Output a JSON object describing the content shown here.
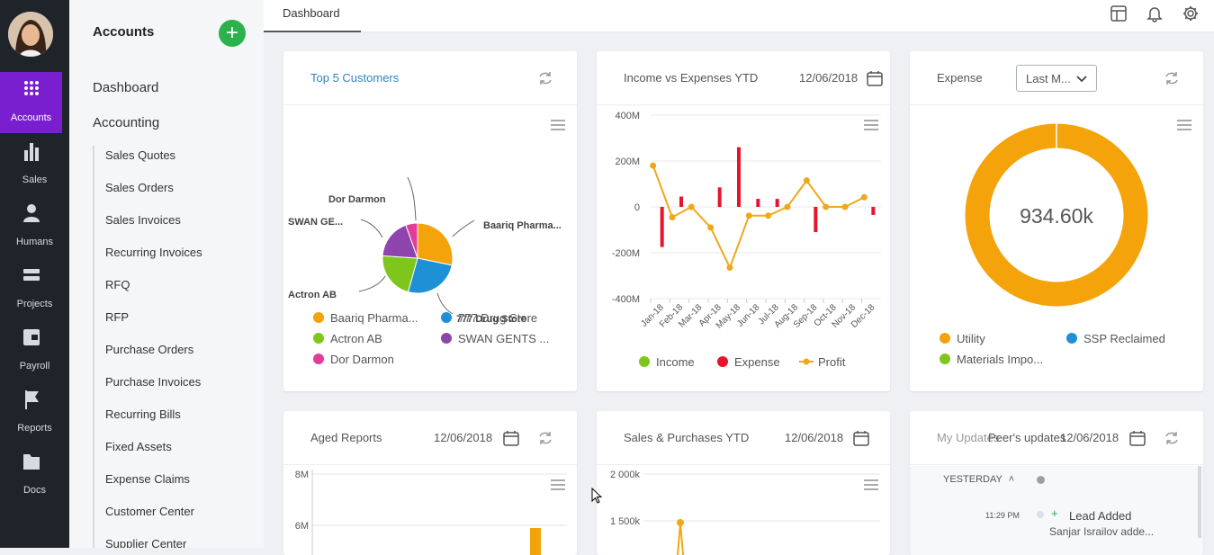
{
  "nav": {
    "items": [
      {
        "label": "Accounts",
        "icon": "apps-grid-icon"
      },
      {
        "label": "Sales",
        "icon": "bar-chart-icon"
      },
      {
        "label": "Humans",
        "icon": "person-icon"
      },
      {
        "label": "Projects",
        "icon": "stack-icon"
      },
      {
        "label": "Payroll",
        "icon": "wallet-icon"
      },
      {
        "label": "Reports",
        "icon": "flag-icon"
      },
      {
        "label": "Docs",
        "icon": "folder-icon"
      }
    ]
  },
  "submenu": {
    "title": "Accounts",
    "add_label": "+",
    "main": [
      "Dashboard",
      "Accounting"
    ],
    "items": [
      "Sales Quotes",
      "Sales Orders",
      "Sales Invoices",
      "Recurring Invoices",
      "RFQ",
      "RFP",
      "Purchase Orders",
      "Purchase Invoices",
      "Recurring Bills",
      "Fixed Assets",
      "Expense Claims",
      "Customer Center",
      "Supplier Center"
    ]
  },
  "topbar": {
    "tab": "Dashboard"
  },
  "cards": {
    "top5": {
      "title": "Top 5 Customers",
      "labels": [
        "Dor Darmon",
        "SWAN GE...",
        "Baariq Pharma...",
        "Actron AB",
        "777 Drug Store"
      ],
      "legend": [
        "Baariq Pharma...",
        "777 Drug Store",
        "Actron AB",
        "SWAN GENTS ...",
        "Dor Darmon"
      ]
    },
    "income": {
      "title": "Income vs Expenses YTD",
      "date": "12/06/2018",
      "legend": [
        "Income",
        "Expense",
        "Profit"
      ]
    },
    "expense": {
      "title": "Expense",
      "select": "Last M...",
      "center": "934.60k",
      "legend": [
        "Utility",
        "SSP Reclaimed",
        "Materials Impo..."
      ]
    },
    "aged": {
      "title": "Aged Reports",
      "date": "12/06/2018"
    },
    "sales": {
      "title": "Sales & Purchases YTD",
      "date": "12/06/2018"
    },
    "updates": {
      "title_a": "My Updates",
      "title_b": "Peer's updates",
      "date": "12/06/2018",
      "group": "YESTERDAY",
      "time": "11:29 PM",
      "event": "Lead Added",
      "person": "Sanjar Israilov adde..."
    }
  },
  "chart_data": [
    {
      "type": "pie",
      "title": "Top 5 Customers",
      "categories": [
        "Baariq Pharma...",
        "777 Drug Store",
        "Actron AB",
        "SWAN GENTS ...",
        "Dor Darmon"
      ],
      "values": [
        26,
        24,
        20,
        17,
        5
      ],
      "colors": [
        "#f5a30a",
        "#1e90d6",
        "#7ec61b",
        "#8e44ad",
        "#e23c9a"
      ]
    },
    {
      "type": "bar",
      "title": "Income vs Expenses YTD",
      "categories": [
        "Jan-18",
        "Feb-18",
        "Mar-18",
        "Apr-18",
        "May-18",
        "Jun-18",
        "Jul-18",
        "Aug-18",
        "Sep-18",
        "Oct-18",
        "Nov-18",
        "Dec-18"
      ],
      "yticks": [
        "400M",
        "200M",
        "0",
        "-200M",
        "-400M"
      ],
      "ylim": [
        -400,
        400
      ],
      "series": [
        {
          "name": "Income",
          "values": [
            0,
            0,
            0,
            0,
            0,
            0,
            0,
            0,
            0,
            0,
            0,
            0
          ],
          "color": "#7ec61b"
        },
        {
          "name": "Expense",
          "values": [
            -175,
            45,
            0,
            85,
            260,
            35,
            35,
            0,
            -110,
            0,
            0,
            -35
          ],
          "color": "#e8132b"
        },
        {
          "name": "Profit",
          "values": [
            180,
            -45,
            0,
            -90,
            -265,
            -38,
            -38,
            0,
            115,
            0,
            0,
            42
          ],
          "color": "#f0a818"
        }
      ]
    },
    {
      "type": "pie",
      "title": "Expense",
      "categories": [
        "Utility",
        "SSP Reclaimed",
        "Materials Impo..."
      ],
      "values": [
        934.6,
        0,
        0
      ],
      "colors": [
        "#f5a30a",
        "#1e90d6",
        "#7ec61b"
      ]
    },
    {
      "type": "bar",
      "title": "Aged Reports",
      "yticks": [
        "8M",
        "6M"
      ]
    },
    {
      "type": "line",
      "title": "Sales & Purchases YTD",
      "yticks": [
        "2 000k",
        "1 500k"
      ]
    }
  ]
}
